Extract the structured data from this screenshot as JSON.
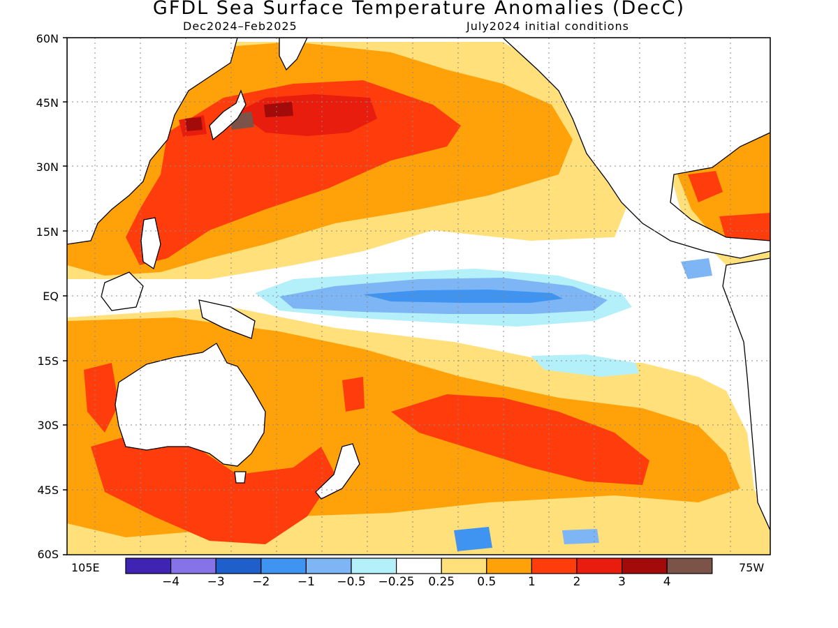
{
  "title": "GFDL Sea Surface Temperature Anomalies (DecC)",
  "period": "Dec2024–Feb2025",
  "init": "July2024 initial conditions",
  "lat_labels": [
    "60N",
    "45N",
    "30N",
    "15N",
    "EQ",
    "15S",
    "30S",
    "45S",
    "60S"
  ],
  "lon_labels": {
    "west": "105E",
    "east": "75W"
  },
  "colorbar": {
    "colors": [
      "#3f24b4",
      "#8673e8",
      "#1f5fcb",
      "#3f93f1",
      "#7eb6f5",
      "#b4f0f9",
      "#ffffff",
      "#ffe07a",
      "#ffa20a",
      "#ff3d0c",
      "#e81d0d",
      "#a30b0b",
      "#7b5348"
    ],
    "labels": [
      "-4",
      "-3",
      "-2",
      "-1",
      "-0.5",
      "-0.25",
      "0.25",
      "0.5",
      "1",
      "2",
      "3",
      "4"
    ]
  },
  "chart_data": {
    "type": "heatmap",
    "variable": "Sea Surface Temperature Anomalies (DecC)",
    "valid_period": "Dec2024-Feb2025",
    "initial_conditions": "July2024",
    "lat_range": [
      "60S",
      "60N"
    ],
    "lon_range": [
      "105E",
      "75W"
    ],
    "levels": [
      -4,
      -3,
      -2,
      -1,
      -0.5,
      -0.25,
      0.25,
      0.5,
      1,
      2,
      3,
      4
    ],
    "features": [
      {
        "region": "equatorial central-eastern Pacific",
        "anomaly_range": [
          -1,
          -0.5
        ]
      },
      {
        "region": "North Pacific 30N-45N",
        "anomaly_range": [
          1,
          2
        ]
      },
      {
        "region": "off Japan / Hokkaido",
        "anomaly_range": [
          3,
          4
        ]
      },
      {
        "region": "South Pacific 25S-40S",
        "anomaly_range": [
          1,
          2
        ]
      },
      {
        "region": "south of Australia",
        "anomaly_range": [
          1,
          2
        ]
      }
    ]
  }
}
